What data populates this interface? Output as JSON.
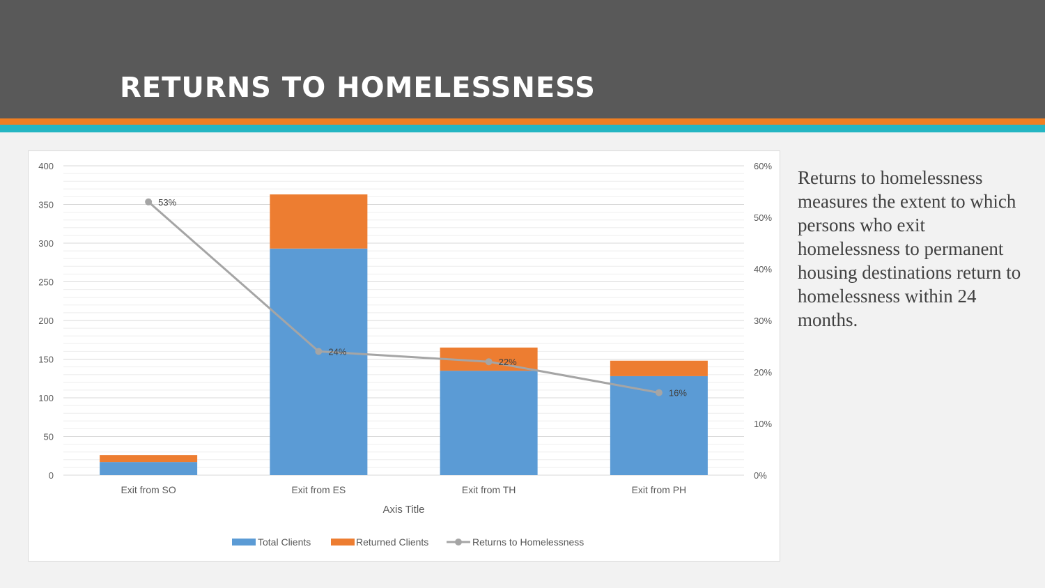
{
  "slide": {
    "title": "RETURNS TO HOMELESSNESS",
    "description": "Returns to homelessness measures the extent to which persons who exit homelessness to permanent housing destinations return to homelessness within 24 months."
  },
  "colors": {
    "header_bg": "#595959",
    "stripe_orange": "#f07f22",
    "stripe_teal": "#25b6c3",
    "total_clients": "#5b9bd5",
    "returned_clients": "#ed7d31",
    "returns_line": "#a5a5a5"
  },
  "chart_data": {
    "type": "bar",
    "stacked": true,
    "categories": [
      "Exit from SO",
      "Exit from ES",
      "Exit from TH",
      "Exit from PH"
    ],
    "series": [
      {
        "name": "Total Clients",
        "type": "bar",
        "axis": "left",
        "values": [
          17,
          293,
          135,
          128
        ]
      },
      {
        "name": "Returned Clients",
        "type": "bar",
        "axis": "left",
        "values": [
          9,
          70,
          30,
          20
        ]
      },
      {
        "name": "Returns to Homelessness",
        "type": "line",
        "axis": "right",
        "values": [
          53,
          24,
          22,
          16
        ],
        "labels": [
          "53%",
          "24%",
          "22%",
          "16%"
        ]
      }
    ],
    "xlabel": "Axis Title",
    "ylim": [
      0,
      400
    ],
    "yticks": [
      "0",
      "50",
      "100",
      "150",
      "200",
      "250",
      "300",
      "350",
      "400"
    ],
    "y2lim": [
      0,
      60
    ],
    "y2ticks": [
      "0%",
      "10%",
      "20%",
      "30%",
      "40%",
      "50%",
      "60%"
    ],
    "grid": true,
    "legend": "bottom"
  }
}
